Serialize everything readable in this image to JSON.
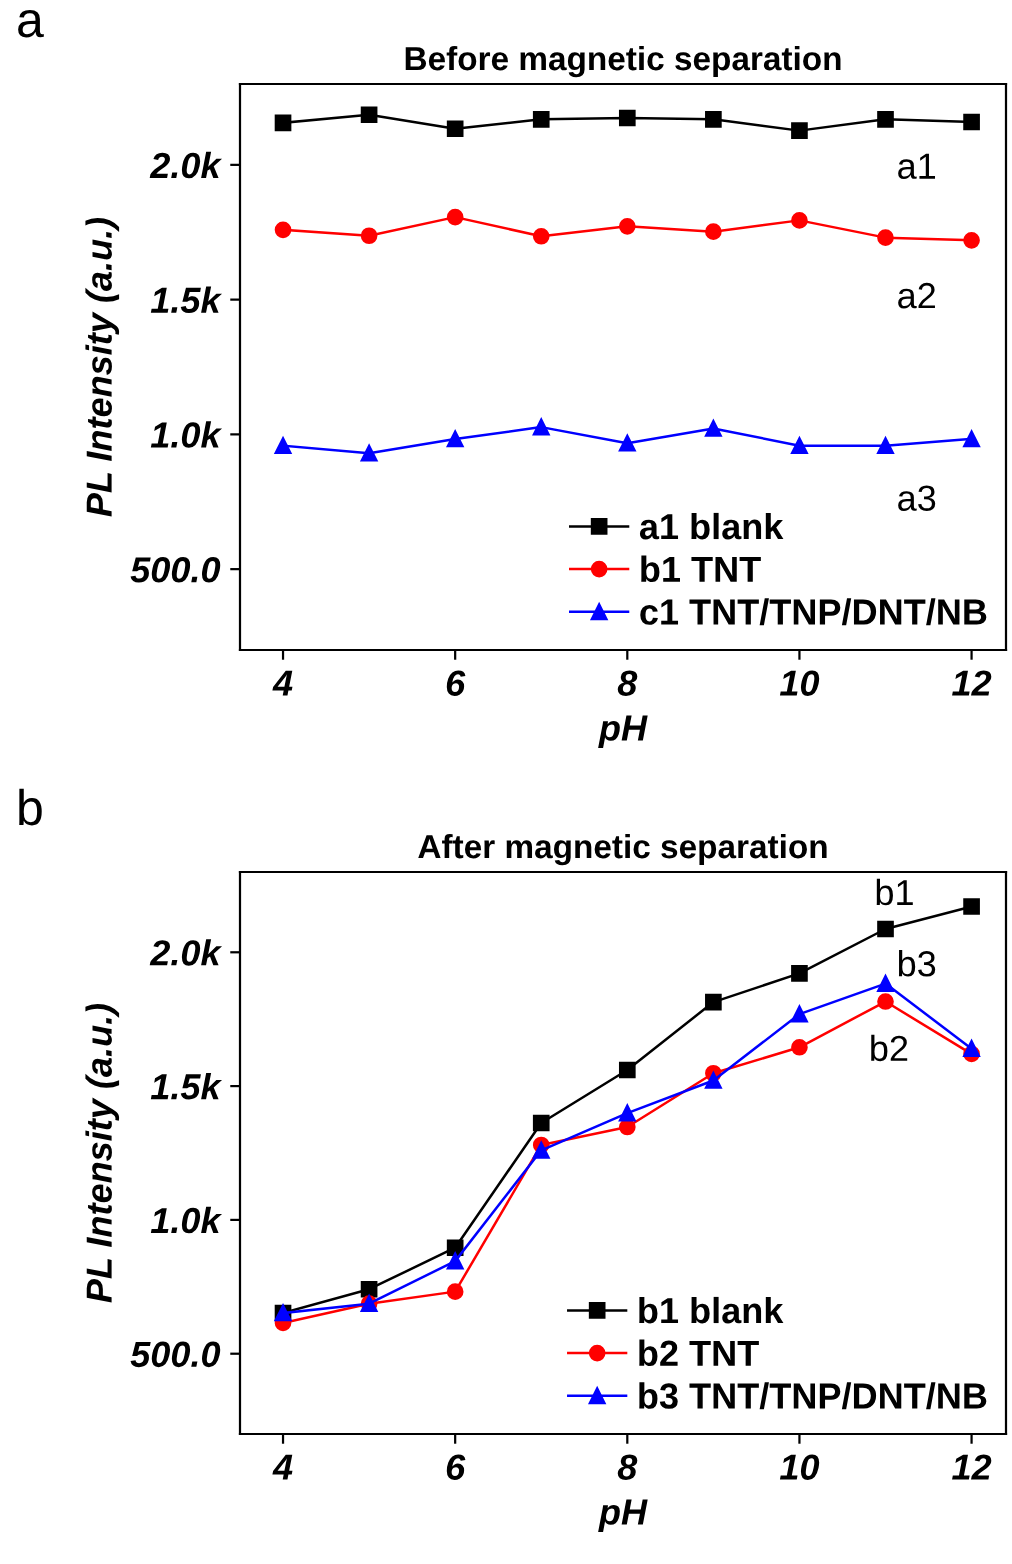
{
  "chart_data": [
    {
      "type": "line",
      "title": "Before magnetic separation",
      "xlabel": "pH",
      "ylabel": "PL Intensity (a.u.)",
      "x": [
        4,
        5,
        6,
        7,
        8,
        9,
        10,
        11,
        12
      ],
      "series": [
        {
          "name": "a1 blank",
          "color": "#000000",
          "marker": "square",
          "values": [
            2156,
            2186,
            2134,
            2169,
            2174,
            2169,
            2127,
            2169,
            2159
          ]
        },
        {
          "name": "b1 TNT",
          "color": "#ff0000",
          "marker": "circle",
          "values": [
            1759,
            1737,
            1806,
            1735,
            1772,
            1752,
            1794,
            1730,
            1720
          ]
        },
        {
          "name": "c1 TNT/TNP/DNT/NB",
          "color": "#0000ff",
          "marker": "triangle",
          "values": [
            958,
            930,
            983,
            1027,
            967,
            1022,
            958,
            958,
            983
          ]
        }
      ],
      "xlim": [
        3.5,
        12.4
      ],
      "ylim": [
        200,
        2300
      ],
      "xticks": [
        4,
        6,
        8,
        10,
        12
      ],
      "yticks": [
        {
          "value": 500,
          "label": "500.0"
        },
        {
          "value": 1000,
          "label": "1.0k"
        },
        {
          "value": 1500,
          "label": "1.5k"
        },
        {
          "value": 2000,
          "label": "2.0k"
        }
      ],
      "grid": false,
      "legend": "bottom right",
      "line_style": "solid",
      "annotations": [
        "a",
        "a1",
        "a2",
        "a3"
      ]
    },
    {
      "type": "line",
      "title": "After magnetic separation",
      "xlabel": "pH",
      "ylabel": "PL Intensity (a.u.)",
      "x": [
        4,
        5,
        6,
        7,
        8,
        9,
        10,
        11,
        12
      ],
      "series": [
        {
          "name": "b1 blank",
          "color": "#000000",
          "marker": "square",
          "values": [
            652,
            741,
            896,
            1362,
            1560,
            1814,
            1921,
            2087,
            2171
          ]
        },
        {
          "name": "b2 TNT",
          "color": "#ff0000",
          "marker": "circle",
          "values": [
            615,
            687,
            732,
            1280,
            1347,
            1548,
            1645,
            1816,
            1620
          ]
        },
        {
          "name": "b3 TNT/TNP/DNT/NB",
          "color": "#0000ff",
          "marker": "triangle",
          "values": [
            652,
            687,
            846,
            1260,
            1399,
            1521,
            1769,
            1883,
            1640
          ]
        }
      ],
      "xlim": [
        3.5,
        12.4
      ],
      "ylim": [
        200,
        2300
      ],
      "xticks": [
        4,
        6,
        8,
        10,
        12
      ],
      "yticks": [
        {
          "value": 500,
          "label": "500.0"
        },
        {
          "value": 1000,
          "label": "1.0k"
        },
        {
          "value": 1500,
          "label": "1.5k"
        },
        {
          "value": 2000,
          "label": "2.0k"
        }
      ],
      "grid": false,
      "legend": "bottom right",
      "line_style": "solid",
      "annotations": [
        "b",
        "b1",
        "b2",
        "b3"
      ]
    }
  ]
}
